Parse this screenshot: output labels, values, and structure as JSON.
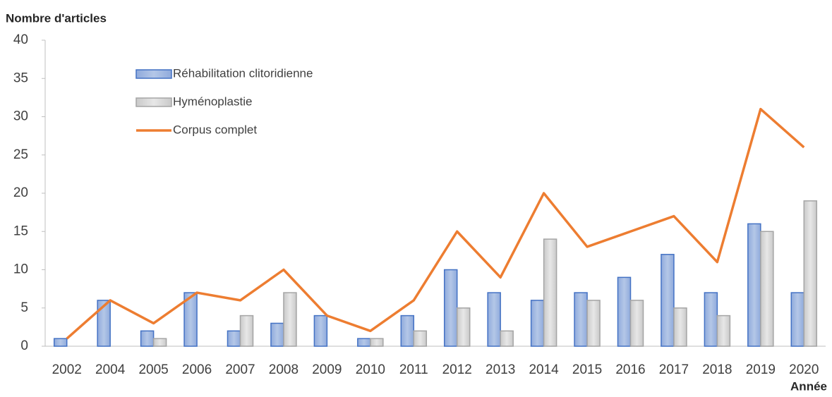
{
  "chart_data": {
    "type": "bar_line",
    "y_axis_label": "Nombre d'articles",
    "x_axis_label": "Année",
    "categories": [
      "2002",
      "2004",
      "2005",
      "2006",
      "2007",
      "2008",
      "2009",
      "2010",
      "2011",
      "2012",
      "2013",
      "2014",
      "2015",
      "2016",
      "2017",
      "2018",
      "2019",
      "2020"
    ],
    "series": [
      {
        "name": "Réhabilitation clitoridienne",
        "type": "bar",
        "color": "#4472c4",
        "values": [
          1,
          6,
          2,
          7,
          2,
          3,
          4,
          1,
          4,
          10,
          7,
          6,
          7,
          9,
          12,
          7,
          16,
          7
        ]
      },
      {
        "name": "Hyménoplastie",
        "type": "bar",
        "color": "#a5a5a5",
        "values": [
          0,
          0,
          1,
          0,
          4,
          7,
          0,
          1,
          2,
          5,
          2,
          14,
          6,
          6,
          5,
          4,
          15,
          19
        ]
      },
      {
        "name": "Corpus complet",
        "type": "line",
        "color": "#ed7d31",
        "values": [
          1,
          6,
          3,
          7,
          6,
          10,
          4,
          2,
          6,
          15,
          9,
          20,
          13,
          15,
          17,
          11,
          31,
          26
        ]
      }
    ],
    "ylim": [
      0,
      40
    ],
    "yticks": [
      0,
      5,
      10,
      15,
      20,
      25,
      30,
      35,
      40
    ],
    "grid": false,
    "legend": "upper left"
  }
}
